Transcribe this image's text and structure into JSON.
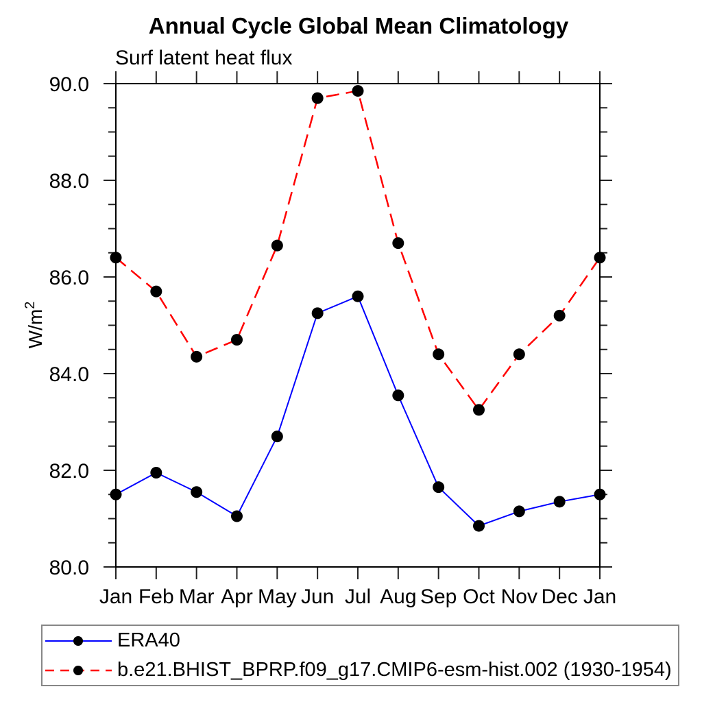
{
  "chart_data": {
    "type": "line",
    "title": "Annual Cycle Global Mean Climatology",
    "subtitle": "Surf latent heat flux",
    "ylabel": "W/m²",
    "ylabel_base": "W/m",
    "ylabel_sup": "2",
    "xlabel": "",
    "categories": [
      "Jan",
      "Feb",
      "Mar",
      "Apr",
      "May",
      "Jun",
      "Jul",
      "Aug",
      "Sep",
      "Oct",
      "Nov",
      "Dec",
      "Jan"
    ],
    "ylim": [
      80.0,
      90.0
    ],
    "ytick_major_labels": [
      "80.0",
      "82.0",
      "84.0",
      "86.0",
      "88.0",
      "90.0"
    ],
    "ytick_major_step": 2.0,
    "ytick_minor_step": 0.5,
    "grid": false,
    "legend_position": "bottom-left",
    "marker": {
      "shape": "circle",
      "color": "#000000",
      "size": 8.5
    },
    "series": [
      {
        "name": "ERA40",
        "color": "#0000ff",
        "line_style": "solid",
        "line_width": 2,
        "values": [
          81.5,
          81.95,
          81.55,
          81.05,
          82.7,
          85.25,
          85.6,
          83.55,
          81.65,
          80.85,
          81.15,
          81.35,
          81.5
        ]
      },
      {
        "name": "b.e21.BHIST_BPRP.f09_g17.CMIP6-esm-hist.002 (1930-1954)",
        "color": "#ff0000",
        "line_style": "dashed",
        "line_width": 2.5,
        "values": [
          86.4,
          85.7,
          84.35,
          84.7,
          86.65,
          89.7,
          89.85,
          86.7,
          84.4,
          83.25,
          84.4,
          85.2,
          86.4
        ]
      }
    ]
  }
}
